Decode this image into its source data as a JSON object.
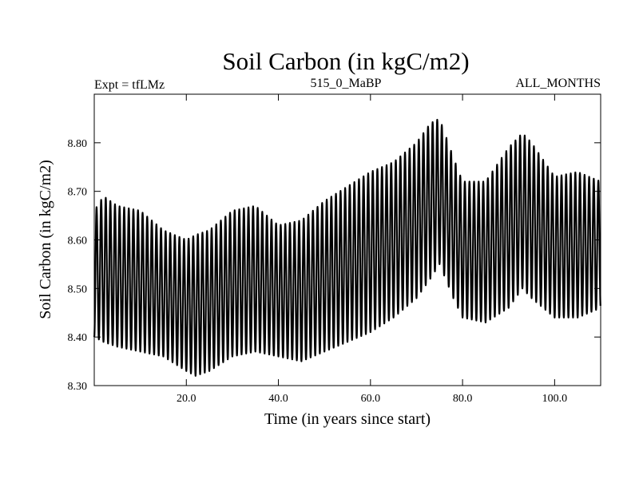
{
  "chart_data": {
    "type": "line",
    "title": "Soil Carbon (in kgC/m2)",
    "subtitle_left": "Expt = tfLMz",
    "subtitle_center": "515_0_MaBP",
    "subtitle_right": "ALL_MONTHS",
    "xlabel": "Time (in years since start)",
    "ylabel": "Soil Carbon (in kgC/m2)",
    "xlim": [
      0,
      110
    ],
    "ylim": [
      8.3,
      8.9
    ],
    "xticks": [
      20,
      40,
      60,
      80,
      100
    ],
    "xtick_labels": [
      "20.0",
      "40.0",
      "60.0",
      "80.0",
      "100.0"
    ],
    "yticks": [
      8.3,
      8.4,
      8.5,
      8.6,
      8.7,
      8.8
    ],
    "ytick_labels": [
      "8.30",
      "8.40",
      "8.50",
      "8.60",
      "8.70",
      "8.80"
    ],
    "grid": false,
    "line_color": "#000000",
    "series": [
      {
        "seasonal_cycle_years": 1,
        "annual_envelope": {
          "year": [
            0,
            2,
            5,
            10,
            15,
            20,
            22,
            25,
            30,
            35,
            40,
            45,
            50,
            55,
            60,
            65,
            70,
            73,
            75,
            78,
            80,
            85,
            90,
            93,
            95,
            100,
            105,
            110
          ],
          "min": [
            8.4,
            8.39,
            8.38,
            8.37,
            8.36,
            8.33,
            8.32,
            8.33,
            8.36,
            8.37,
            8.36,
            8.35,
            8.37,
            8.39,
            8.41,
            8.44,
            8.48,
            8.52,
            8.55,
            8.48,
            8.44,
            8.43,
            8.46,
            8.5,
            8.48,
            8.44,
            8.44,
            8.46
          ],
          "max": [
            8.66,
            8.69,
            8.67,
            8.66,
            8.62,
            8.6,
            8.61,
            8.62,
            8.66,
            8.67,
            8.63,
            8.64,
            8.68,
            8.71,
            8.74,
            8.76,
            8.8,
            8.84,
            8.85,
            8.77,
            8.72,
            8.72,
            8.79,
            8.82,
            8.8,
            8.73,
            8.74,
            8.72
          ]
        }
      }
    ]
  }
}
